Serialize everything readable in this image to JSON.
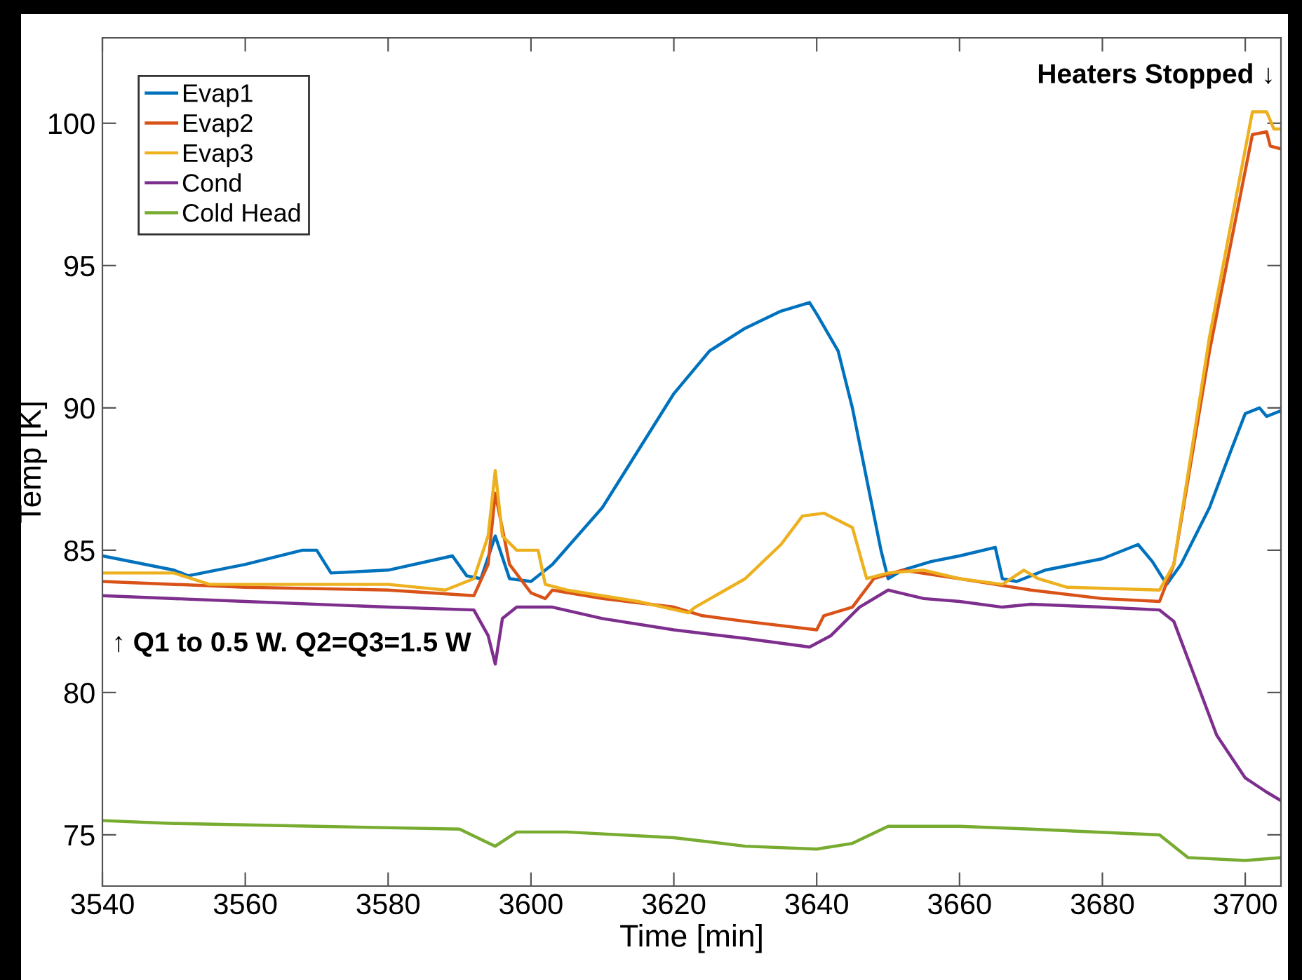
{
  "chart_data": {
    "type": "line",
    "xlabel": "Time [min]",
    "ylabel": "Temp [K]",
    "annotations": [
      "Heaters Stopped ↓",
      "↑ Q1 to 0.5 W. Q2=Q3=1.5 W"
    ],
    "xlim": [
      3540,
      3705
    ],
    "xticks": [
      3540,
      3560,
      3580,
      3600,
      3620,
      3640,
      3660,
      3680,
      3700
    ],
    "ylim": [
      73.2,
      103
    ],
    "yticks": [
      75,
      80,
      85,
      90,
      95,
      100
    ],
    "grid": false,
    "legend": "top left",
    "line_style": "solid",
    "series": [
      {
        "name": "Evap1",
        "color": "#0072bd",
        "x": [
          3540,
          3550,
          3552,
          3560,
          3568,
          3570,
          3572,
          3580,
          3589,
          3591,
          3593,
          3595,
          3597,
          3600,
          3603,
          3610,
          3615,
          3620,
          3625,
          3630,
          3635,
          3639,
          3640,
          3643,
          3645,
          3647,
          3649,
          3650,
          3652,
          3656,
          3660,
          3665,
          3666,
          3668,
          3672,
          3680,
          3685,
          3687,
          3689,
          3691,
          3695,
          3698,
          3700,
          3702,
          3703,
          3705
        ],
        "values": [
          84.8,
          84.3,
          84.1,
          84.5,
          85.0,
          85.0,
          84.2,
          84.3,
          84.8,
          84.1,
          84.0,
          85.5,
          84.0,
          83.9,
          84.5,
          86.5,
          88.5,
          90.5,
          92.0,
          92.8,
          93.4,
          93.7,
          93.3,
          92.0,
          90.0,
          87.5,
          85.0,
          84.0,
          84.3,
          84.6,
          84.8,
          85.1,
          84.0,
          83.9,
          84.3,
          84.7,
          85.2,
          84.6,
          83.8,
          84.5,
          86.5,
          88.5,
          89.8,
          90.0,
          89.7,
          89.9
        ]
      },
      {
        "name": "Evap2",
        "color": "#d95319",
        "x": [
          3540,
          3560,
          3580,
          3592,
          3594,
          3595,
          3597,
          3600,
          3602,
          3603,
          3610,
          3620,
          3624,
          3630,
          3640,
          3641,
          3645,
          3648,
          3652,
          3660,
          3665,
          3670,
          3680,
          3688,
          3690,
          3695,
          3701,
          3703,
          3703.5,
          3705
        ],
        "values": [
          83.9,
          83.7,
          83.6,
          83.4,
          84.5,
          87.0,
          84.5,
          83.5,
          83.3,
          83.6,
          83.3,
          83.0,
          82.7,
          82.5,
          82.2,
          82.7,
          83.0,
          84.0,
          84.3,
          84.0,
          83.8,
          83.6,
          83.3,
          83.2,
          84.5,
          92.0,
          99.6,
          99.7,
          99.2,
          99.1
        ]
      },
      {
        "name": "Evap3",
        "color": "#edb120",
        "x": [
          3540,
          3550,
          3555,
          3580,
          3588,
          3592,
          3594,
          3595,
          3596,
          3598,
          3601,
          3602,
          3605,
          3615,
          3622,
          3623,
          3630,
          3635,
          3638,
          3641,
          3645,
          3647,
          3650,
          3655,
          3660,
          3666,
          3669,
          3671,
          3675,
          3688,
          3690,
          3695,
          3701,
          3703,
          3704,
          3705
        ],
        "values": [
          84.2,
          84.2,
          83.8,
          83.8,
          83.6,
          84.0,
          85.5,
          87.8,
          85.5,
          85.0,
          85.0,
          83.8,
          83.6,
          83.2,
          82.8,
          83.0,
          84.0,
          85.2,
          86.2,
          86.3,
          85.8,
          84.0,
          84.2,
          84.3,
          84.0,
          83.8,
          84.3,
          84.0,
          83.7,
          83.6,
          84.5,
          92.5,
          100.4,
          100.4,
          99.8,
          99.8
        ]
      },
      {
        "name": "Cond",
        "color": "#7e2f8e",
        "x": [
          3540,
          3560,
          3580,
          3592,
          3594,
          3595,
          3596,
          3598,
          3603,
          3610,
          3620,
          3630,
          3639,
          3642,
          3646,
          3650,
          3655,
          3660,
          3666,
          3670,
          3680,
          3688,
          3690,
          3693,
          3696,
          3700,
          3703,
          3705
        ],
        "values": [
          83.4,
          83.2,
          83.0,
          82.9,
          82.0,
          81.0,
          82.6,
          83.0,
          83.0,
          82.6,
          82.2,
          81.9,
          81.6,
          82.0,
          83.0,
          83.6,
          83.3,
          83.2,
          83.0,
          83.1,
          83.0,
          82.9,
          82.5,
          80.5,
          78.5,
          77.0,
          76.5,
          76.2
        ]
      },
      {
        "name": "Cold Head",
        "color": "#77ac30",
        "x": [
          3540,
          3550,
          3570,
          3590,
          3595,
          3598,
          3605,
          3620,
          3630,
          3640,
          3645,
          3650,
          3660,
          3670,
          3688,
          3692,
          3700,
          3705
        ],
        "values": [
          75.5,
          75.4,
          75.3,
          75.2,
          74.6,
          75.1,
          75.1,
          74.9,
          74.6,
          74.5,
          74.7,
          75.3,
          75.3,
          75.2,
          75.0,
          74.2,
          74.1,
          74.2
        ]
      }
    ]
  }
}
